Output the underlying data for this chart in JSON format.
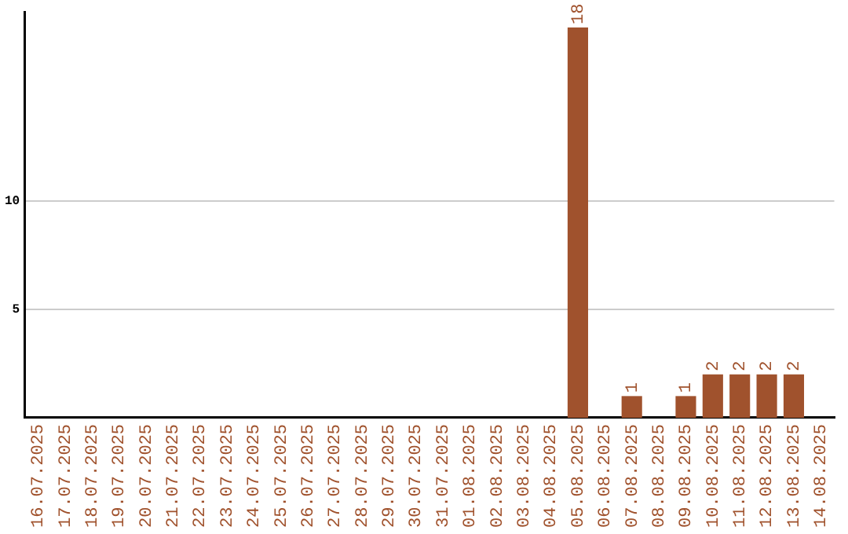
{
  "chart_data": {
    "type": "bar",
    "categories": [
      "16.07.2025",
      "17.07.2025",
      "18.07.2025",
      "19.07.2025",
      "20.07.2025",
      "21.07.2025",
      "22.07.2025",
      "23.07.2025",
      "24.07.2025",
      "25.07.2025",
      "26.07.2025",
      "27.07.2025",
      "28.07.2025",
      "29.07.2025",
      "30.07.2025",
      "31.07.2025",
      "01.08.2025",
      "02.08.2025",
      "03.08.2025",
      "04.08.2025",
      "05.08.2025",
      "06.08.2025",
      "07.08.2025",
      "08.08.2025",
      "09.08.2025",
      "10.08.2025",
      "11.08.2025",
      "12.08.2025",
      "13.08.2025",
      "14.08.2025"
    ],
    "values": [
      0,
      0,
      0,
      0,
      0,
      0,
      0,
      0,
      0,
      0,
      0,
      0,
      0,
      0,
      0,
      0,
      0,
      0,
      0,
      0,
      18,
      0,
      1,
      0,
      1,
      2,
      2,
      2,
      2,
      0
    ],
    "value_labels": [
      null,
      null,
      null,
      null,
      null,
      null,
      null,
      null,
      null,
      null,
      null,
      null,
      null,
      null,
      null,
      null,
      null,
      null,
      null,
      null,
      "18",
      null,
      "1",
      null,
      "1",
      "2",
      "2",
      "2",
      "2",
      null
    ],
    "color": "#a0522d",
    "ylim": [
      0,
      18.7
    ],
    "yticks": [
      5,
      10
    ],
    "grid": "y",
    "legend": false
  }
}
